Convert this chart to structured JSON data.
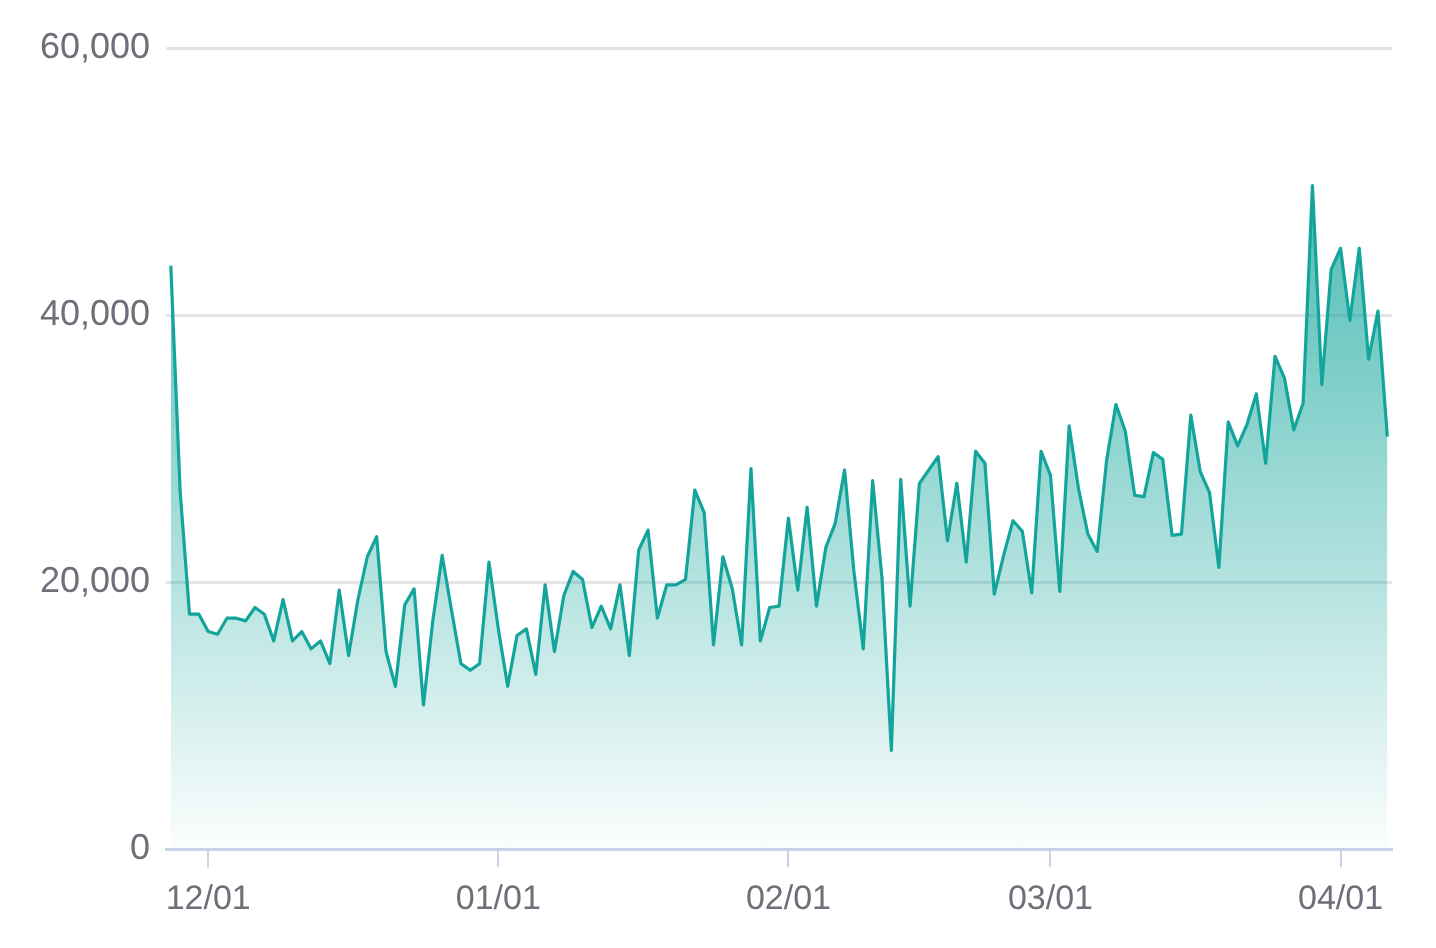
{
  "chart_data": {
    "type": "area",
    "categories": [
      null,
      null,
      null,
      null,
      "12/01",
      null,
      null,
      null,
      null,
      null,
      null,
      null,
      null,
      null,
      null,
      null,
      null,
      null,
      null,
      null,
      null,
      null,
      null,
      null,
      null,
      null,
      null,
      null,
      null,
      null,
      null,
      null,
      null,
      null,
      null,
      "01/01",
      null,
      null,
      null,
      null,
      null,
      null,
      null,
      null,
      null,
      null,
      null,
      null,
      null,
      null,
      null,
      null,
      null,
      null,
      null,
      null,
      null,
      null,
      null,
      null,
      null,
      null,
      null,
      null,
      null,
      null,
      "02/01",
      null,
      null,
      null,
      null,
      null,
      null,
      null,
      null,
      null,
      null,
      null,
      null,
      null,
      null,
      null,
      null,
      null,
      null,
      null,
      null,
      null,
      null,
      null,
      null,
      null,
      null,
      null,
      "03/01",
      null,
      null,
      null,
      null,
      null,
      null,
      null,
      null,
      null,
      null,
      null,
      null,
      null,
      null,
      null,
      null,
      null,
      null,
      null,
      null,
      null,
      null,
      null,
      null,
      null,
      null,
      null,
      null,
      null,
      null,
      "04/01",
      null,
      null,
      null,
      null,
      null
    ],
    "series": [
      {
        "color": "#13a59b",
        "values": [
          43700,
          26800,
          17600,
          17600,
          16300,
          16100,
          17300,
          17300,
          17100,
          18100,
          17600,
          15600,
          18700,
          15600,
          16300,
          15000,
          15600,
          13900,
          19400,
          14500,
          18700,
          21900,
          23400,
          14800,
          12200,
          18300,
          19500,
          10800,
          17100,
          22000,
          17900,
          13900,
          13400,
          13900,
          21500,
          16500,
          12200,
          16000,
          16500,
          13100,
          19800,
          14800,
          19000,
          20800,
          20200,
          16600,
          18200,
          16500,
          19800,
          14500,
          22400,
          23900,
          17300,
          19800,
          19800,
          20200,
          26900,
          25200,
          15300,
          21900,
          19500,
          15300,
          28500,
          15600,
          18100,
          18200,
          24800,
          19400,
          25600,
          18200,
          22600,
          24400,
          28400,
          20800,
          15000,
          27600,
          20300,
          7400,
          27700,
          18200,
          27400,
          28400,
          29400,
          23100,
          27400,
          21500,
          29800,
          28900,
          19100,
          22000,
          24600,
          23800,
          19200,
          29800,
          28000,
          19300,
          31700,
          27000,
          23600,
          22300,
          29100,
          33300,
          31300,
          26500,
          26400,
          29700,
          29200,
          23500,
          23600,
          32500,
          28300,
          26700,
          21100,
          32000,
          30200,
          31800,
          34100,
          28900,
          36900,
          35300,
          31400,
          33400,
          49700,
          34800,
          43400,
          45000,
          39600,
          45000,
          36700,
          40300,
          30900
        ]
      }
    ],
    "ylim": [
      0,
      60000
    ],
    "yticks": [
      0,
      {
        "value": 20000,
        "label": "20,000"
      },
      {
        "value": 40000,
        "label": "40,000"
      },
      {
        "value": 60000,
        "label": "60,000"
      }
    ],
    "grid": "y",
    "legend": false,
    "marker": "none",
    "line_style": "solid"
  }
}
